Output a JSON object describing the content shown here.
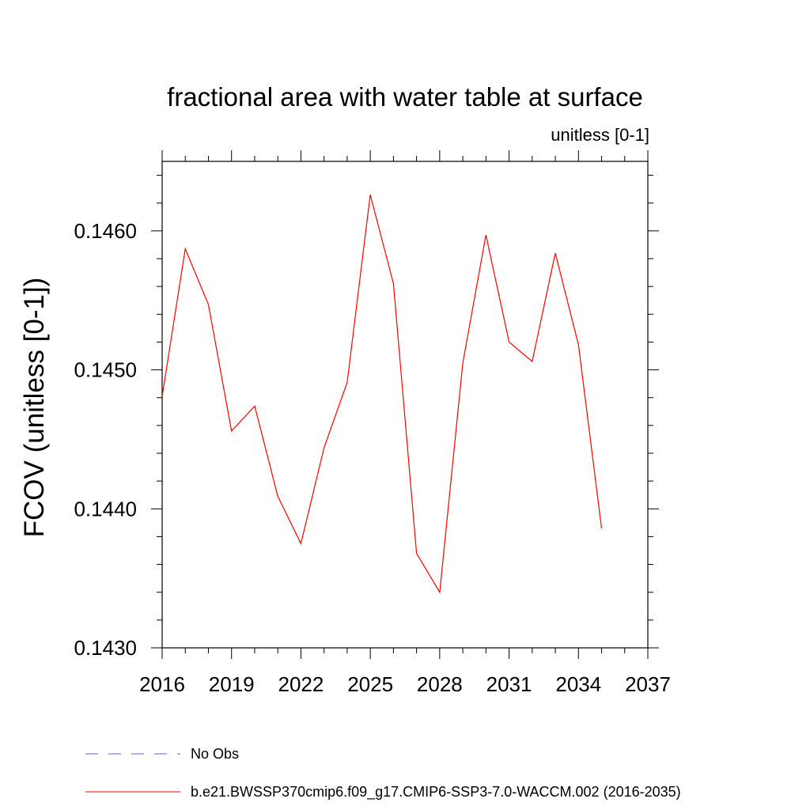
{
  "chart_data": {
    "type": "line",
    "title": "fractional area with water table at surface",
    "units_label": "unitless [0-1]",
    "ylabel": "FCOV  (unitless [0-1])",
    "xlabel": "",
    "xlim": [
      2016,
      2037
    ],
    "ylim": [
      0.143,
      0.1465
    ],
    "x_ticks": [
      2016,
      2019,
      2022,
      2025,
      2028,
      2031,
      2034,
      2037
    ],
    "x_tick_labels": [
      "2016",
      "2019",
      "2022",
      "2025",
      "2028",
      "2031",
      "2034",
      "2037"
    ],
    "y_ticks": [
      0.143,
      0.144,
      0.145,
      0.146
    ],
    "y_tick_labels": [
      "0.1430",
      "0.1440",
      "0.1450",
      "0.1460"
    ],
    "series": [
      {
        "name": "b.e21.BWSSP370cmip6.f09_g17.CMIP6-SSP3-7.0-WACCM.002 (2016-2035)",
        "color": "#ff0000",
        "x": [
          2016,
          2017,
          2018,
          2019,
          2020,
          2021,
          2022,
          2023,
          2024,
          2025,
          2026,
          2027,
          2028,
          2029,
          2030,
          2031,
          2032,
          2033,
          2034,
          2035
        ],
        "y": [
          0.14481,
          0.14587,
          0.14547,
          0.14456,
          0.14474,
          0.14409,
          0.14375,
          0.14444,
          0.14491,
          0.14626,
          0.14562,
          0.14368,
          0.1434,
          0.14505,
          0.14597,
          0.1452,
          0.14506,
          0.14584,
          0.14518,
          0.14386
        ]
      }
    ],
    "legend": [
      {
        "label": "No Obs",
        "style": "dashed",
        "color": "#6a5acd"
      },
      {
        "label": "b.e21.BWSSP370cmip6.f09_g17.CMIP6-SSP3-7.0-WACCM.002 (2016-2035)",
        "style": "solid",
        "color": "#ff0000"
      }
    ],
    "grid": false,
    "legend_placement": "bottom"
  }
}
